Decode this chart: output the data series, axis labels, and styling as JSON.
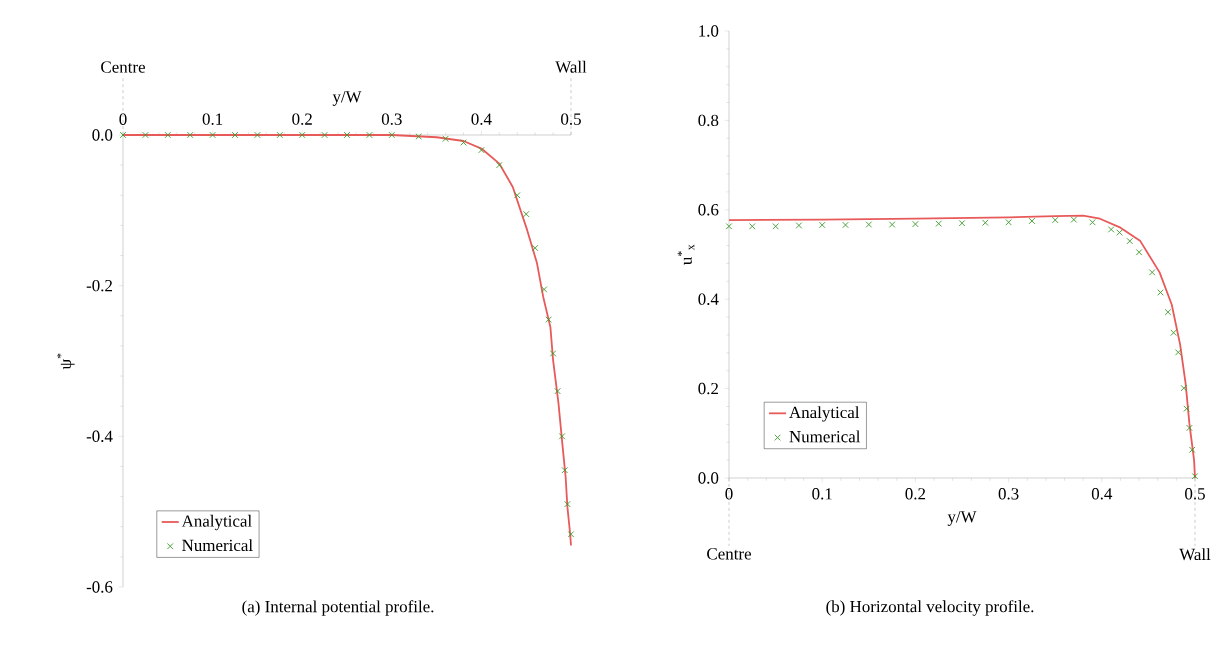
{
  "chart_data": [
    {
      "type": "line",
      "xlabel": "y/W",
      "ylabel": "ψ$^{*}$",
      "xlim": [
        0,
        0.5
      ],
      "ylim": [
        -0.6,
        0
      ],
      "xticks": [
        0,
        0.1,
        0.2,
        0.3,
        0.4,
        0.5
      ],
      "yticks": [
        {
          "value": -0.6,
          "label": "-0.6"
        },
        {
          "value": -0.4,
          "label": "-0.4"
        },
        {
          "value": -0.2,
          "label": "-0.2"
        },
        {
          "value": 0,
          "label": "0.0"
        }
      ],
      "legend": "bottom left",
      "annotations": [
        "(a) Internal potential profile."
      ],
      "ref_lines": [
        {
          "axis": "x",
          "value": 0,
          "label": "Centre",
          "line_style": "dashed"
        },
        {
          "axis": "x",
          "value": 0.5,
          "label": "Wall",
          "line_style": "dashed"
        }
      ],
      "series": [
        {
          "name": "Analytical",
          "type": "line",
          "color": "#e85a5a",
          "marker": "none",
          "x": [
            0,
            0.1,
            0.2,
            0.3,
            0.35,
            0.38,
            0.4,
            0.42,
            0.435,
            0.451,
            0.462,
            0.469,
            0.477,
            0.48,
            0.486,
            0.491,
            0.494,
            0.496,
            0.499,
            0.5
          ],
          "values": [
            0,
            0,
            0,
            0,
            -0.003,
            -0.008,
            -0.018,
            -0.038,
            -0.069,
            -0.126,
            -0.17,
            -0.215,
            -0.255,
            -0.299,
            -0.356,
            -0.418,
            -0.454,
            -0.494,
            -0.529,
            -0.545
          ]
        },
        {
          "name": "Numerical",
          "type": "scatter",
          "color": "#3a9a2a",
          "marker": "cross",
          "x": [
            0,
            0.025,
            0.05,
            0.075,
            0.1,
            0.125,
            0.15,
            0.175,
            0.2,
            0.225,
            0.25,
            0.275,
            0.3,
            0.33,
            0.36,
            0.38,
            0.4,
            0.42,
            0.44,
            0.45,
            0.46,
            0.47,
            0.475,
            0.48,
            0.485,
            0.49,
            0.493,
            0.496,
            0.5
          ],
          "values": [
            0,
            0,
            0,
            0,
            0,
            0,
            0,
            0,
            0,
            0,
            0,
            0,
            0,
            -0.002,
            -0.005,
            -0.01,
            -0.02,
            -0.04,
            -0.08,
            -0.105,
            -0.15,
            -0.205,
            -0.245,
            -0.29,
            -0.34,
            -0.4,
            -0.445,
            -0.49,
            -0.53
          ]
        }
      ]
    },
    {
      "type": "line",
      "xlabel": "y/W",
      "ylabel": "u$^{*}$$_{x}$",
      "xlim": [
        0,
        0.5
      ],
      "ylim": [
        0,
        1
      ],
      "xticks": [
        0,
        0.1,
        0.2,
        0.3,
        0.4,
        0.5
      ],
      "yticks": [
        {
          "value": 0,
          "label": "0.0"
        },
        {
          "value": 0.2,
          "label": "0.2"
        },
        {
          "value": 0.4,
          "label": "0.4"
        },
        {
          "value": 0.6,
          "label": "0.6"
        },
        {
          "value": 0.8,
          "label": "0.8"
        },
        {
          "value": 1,
          "label": "1.0"
        }
      ],
      "legend": "bottom left",
      "annotations": [
        "(b) Horizontal velocity profile."
      ],
      "ref_lines": [
        {
          "axis": "x",
          "value": 0,
          "label": "Centre",
          "line_style": "dashed"
        },
        {
          "axis": "x",
          "value": 0.5,
          "label": "Wall",
          "line_style": "dashed"
        }
      ],
      "series": [
        {
          "name": "Analytical",
          "type": "line",
          "color": "#e85a5a",
          "marker": "none",
          "x": [
            0,
            0.1,
            0.2,
            0.3,
            0.35,
            0.38,
            0.398,
            0.42,
            0.441,
            0.462,
            0.475,
            0.484,
            0.49,
            0.494,
            0.499,
            0.5
          ],
          "values": [
            0.577,
            0.578,
            0.58,
            0.583,
            0.586,
            0.587,
            0.58,
            0.56,
            0.531,
            0.46,
            0.388,
            0.299,
            0.21,
            0.121,
            0.04,
            0
          ]
        },
        {
          "name": "Numerical",
          "type": "scatter",
          "color": "#3a9a2a",
          "marker": "cross",
          "x": [
            0,
            0.025,
            0.05,
            0.075,
            0.1,
            0.125,
            0.15,
            0.175,
            0.2,
            0.225,
            0.25,
            0.275,
            0.3,
            0.325,
            0.35,
            0.37,
            0.39,
            0.41,
            0.419,
            0.43,
            0.44,
            0.454,
            0.463,
            0.471,
            0.477,
            0.482,
            0.488,
            0.491,
            0.494,
            0.497,
            0.5
          ],
          "values": [
            0.563,
            0.563,
            0.563,
            0.565,
            0.566,
            0.566,
            0.567,
            0.567,
            0.568,
            0.569,
            0.57,
            0.571,
            0.572,
            0.575,
            0.577,
            0.578,
            0.572,
            0.556,
            0.549,
            0.53,
            0.505,
            0.46,
            0.415,
            0.371,
            0.325,
            0.281,
            0.201,
            0.155,
            0.112,
            0.063,
            0.004
          ]
        }
      ]
    }
  ]
}
